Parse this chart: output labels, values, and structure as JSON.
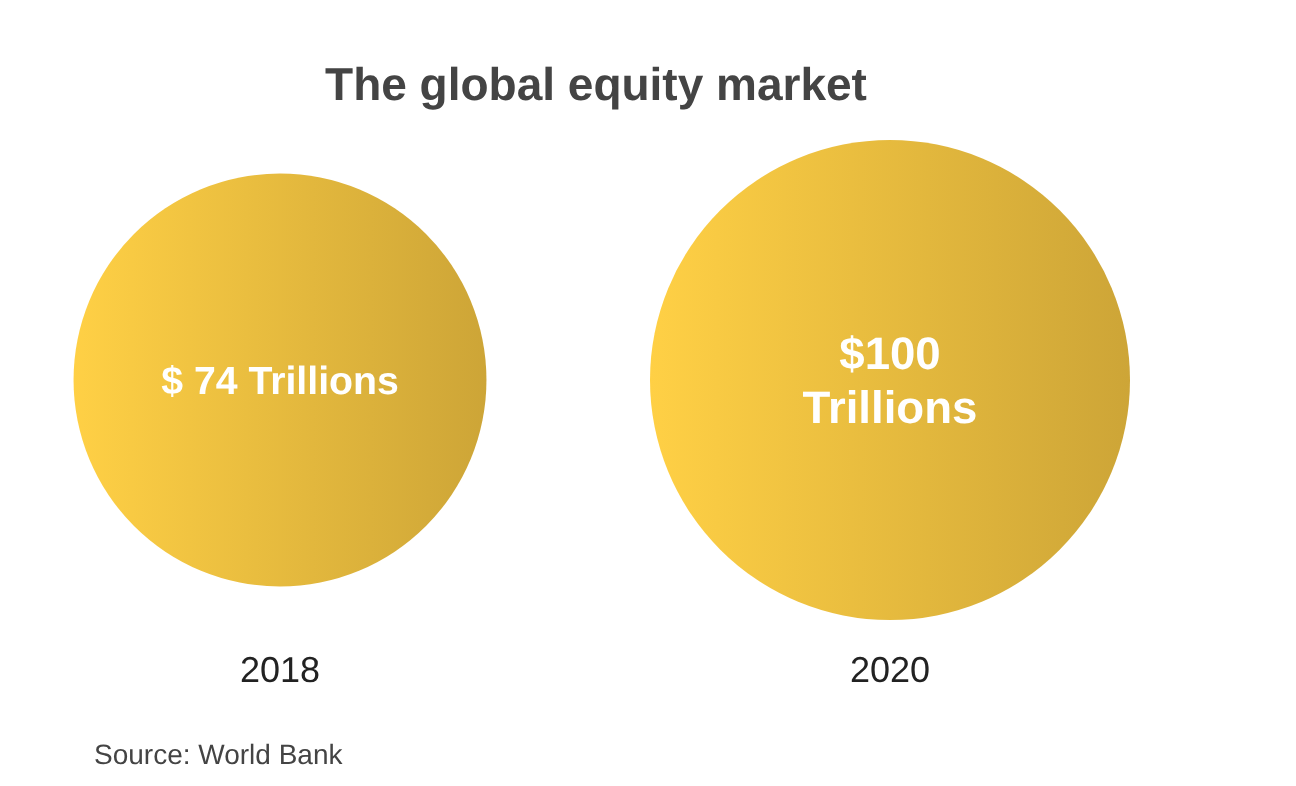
{
  "chart_data": {
    "type": "other",
    "title": "The global equity market",
    "categories": [
      "2018",
      "2020"
    ],
    "values": [
      74,
      100
    ],
    "value_labels": [
      "$ 74 Trillions",
      "$100 Trillions"
    ],
    "color": "#e4b83d",
    "annotations": [
      "Source: World Bank"
    ]
  }
}
